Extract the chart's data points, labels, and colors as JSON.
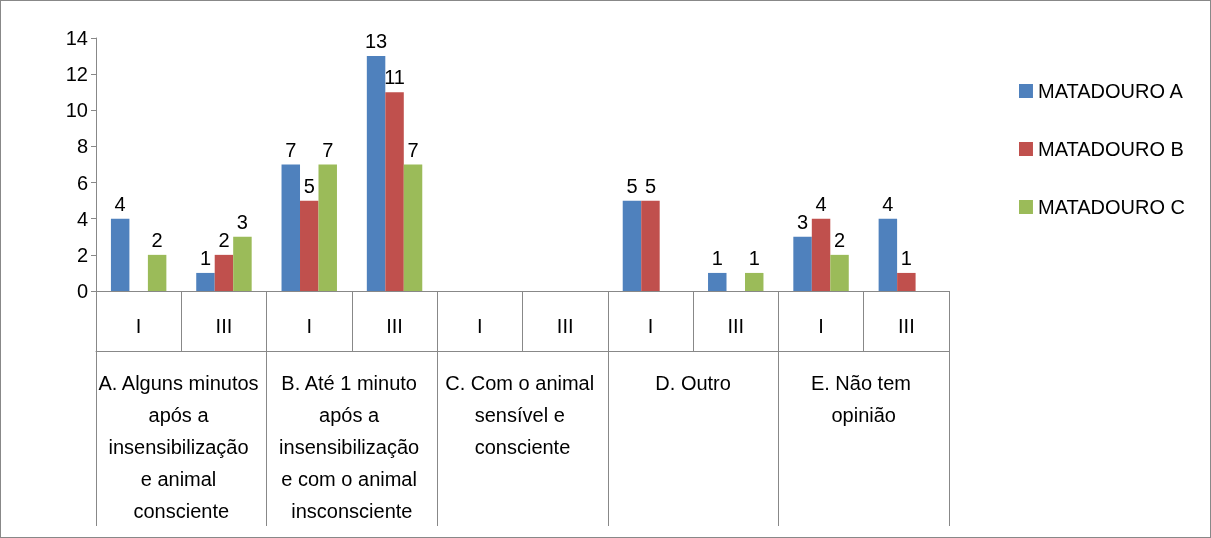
{
  "chart_data": {
    "type": "bar",
    "categories": [
      "I",
      "III",
      "I",
      "III",
      "I",
      "III",
      "I",
      "III",
      "I",
      "III"
    ],
    "annotations": [
      "A. Alguns minutos após a insensibilização e animal consciente",
      "B. Até 1 minuto após a insensibilização e com o animal insconsciente",
      "C. Com o animal sensível e consciente",
      "D. Outro",
      "E. Não tem opinião"
    ],
    "series": [
      {
        "name": "MATADOURO A",
        "color": "#4f81bd",
        "values": [
          4,
          1,
          7,
          13,
          0,
          0,
          5,
          1,
          3,
          4
        ],
        "value_labels": [
          "4",
          "1",
          "7",
          "13",
          null,
          null,
          "5",
          "1",
          "3",
          "4"
        ]
      },
      {
        "name": "MATADOURO B",
        "color": "#c0504d",
        "values": [
          0,
          2,
          5,
          11,
          0,
          0,
          5,
          0,
          4,
          1
        ],
        "value_labels": [
          null,
          "2",
          "5",
          "11",
          null,
          null,
          "5",
          null,
          "4",
          "1"
        ]
      },
      {
        "name": "MATADOURO C",
        "color": "#9bbb59",
        "values": [
          2,
          3,
          7,
          7,
          0,
          0,
          0,
          1,
          2,
          0
        ],
        "value_labels": [
          "2",
          "3",
          "7",
          "7",
          null,
          null,
          null,
          "1",
          "2",
          null
        ]
      }
    ],
    "ylim": [
      0,
      14
    ],
    "yticks": [
      0,
      2,
      4,
      6,
      8,
      10,
      12,
      14
    ],
    "grid": false,
    "legend": "right"
  }
}
